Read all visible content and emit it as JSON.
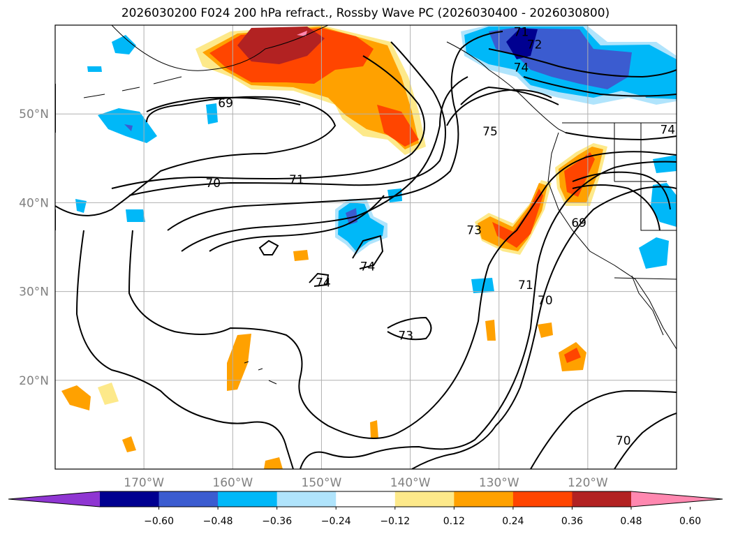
{
  "title": "2026030200 F024 200 hPa refract., Rossby Wave PC (2026030400 - 2026030800)",
  "map": {
    "lon_range": [
      -180,
      -110
    ],
    "lat_range": [
      10,
      60
    ],
    "grid_lons": [
      -170,
      -160,
      -150,
      -140,
      -130,
      -120
    ],
    "grid_lats": [
      20,
      30,
      40,
      50
    ],
    "lon_tick_labels": [
      "170°W",
      "160°W",
      "150°W",
      "140°W",
      "130°W",
      "120°W"
    ],
    "lat_tick_labels": [
      "20°N",
      "30°N",
      "40°N",
      "50°N"
    ]
  },
  "contour_labels": [
    {
      "text": "69",
      "lon": -160.8,
      "lat": 51.0
    },
    {
      "text": "70",
      "lon": -162.2,
      "lat": 42.0
    },
    {
      "text": "71",
      "lon": -152.8,
      "lat": 42.4
    },
    {
      "text": "75",
      "lon": -131.0,
      "lat": 47.8
    },
    {
      "text": "72",
      "lon": -126.0,
      "lat": 57.6
    },
    {
      "text": "74",
      "lon": -127.5,
      "lat": 55.0
    },
    {
      "text": "71",
      "lon": -127.5,
      "lat": 59.0
    },
    {
      "text": "74",
      "lon": -111.0,
      "lat": 48.0
    },
    {
      "text": "73",
      "lon": -132.8,
      "lat": 36.7
    },
    {
      "text": "69",
      "lon": -121.0,
      "lat": 37.5
    },
    {
      "text": "74",
      "lon": -144.8,
      "lat": 32.6
    },
    {
      "text": "74",
      "lon": -149.8,
      "lat": 30.8
    },
    {
      "text": "71",
      "lon": -127.0,
      "lat": 30.5
    },
    {
      "text": "70",
      "lon": -124.8,
      "lat": 28.8
    },
    {
      "text": "73",
      "lon": -140.5,
      "lat": 24.8
    },
    {
      "text": "70",
      "lon": -116.0,
      "lat": 13.0
    }
  ],
  "colorbar": {
    "colors": [
      "#8f36d2",
      "#000090",
      "#3b5cd0",
      "#00b8f8",
      "#b0e4fc",
      "#ffffff",
      "#fde98a",
      "#ffa100",
      "#ff4500",
      "#b22222",
      "#ff88b0"
    ],
    "tick_labels": [
      "−0.60",
      "−0.48",
      "−0.36",
      "−0.24",
      "−0.12",
      "0.12",
      "0.24",
      "0.36",
      "0.48",
      "0.60"
    ]
  },
  "legend_colors": {
    "neg_strong": "#000090",
    "neg_mid": "#3b5cd0",
    "neg_light": "#00b8f8",
    "neg_pale": "#b0e4fc",
    "pos_pale": "#fde98a",
    "pos_light": "#ffa100",
    "pos_mid": "#ff4500",
    "pos_strong": "#b22222",
    "pos_max": "#ff88b0"
  }
}
